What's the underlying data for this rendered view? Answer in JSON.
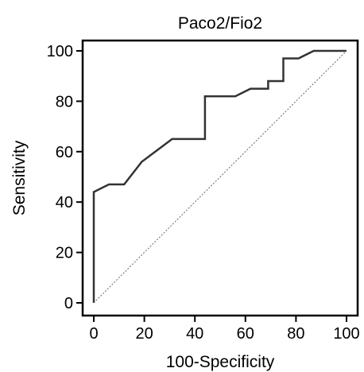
{
  "chart_data": {
    "type": "line",
    "title": "Paco2/Fio2",
    "xlabel": "100-Specificity",
    "ylabel": "Sensitivity",
    "xlim": [
      0,
      100
    ],
    "ylim": [
      0,
      100
    ],
    "xticks": [
      0,
      20,
      40,
      60,
      80,
      100
    ],
    "yticks": [
      0,
      20,
      40,
      60,
      80,
      100
    ],
    "grid": false,
    "series": [
      {
        "style": "solid",
        "color": "#333333",
        "points": [
          [
            0,
            0
          ],
          [
            0,
            44
          ],
          [
            6,
            47
          ],
          [
            12,
            47
          ],
          [
            19,
            56
          ],
          [
            31,
            65
          ],
          [
            44,
            65
          ],
          [
            44,
            82
          ],
          [
            56,
            82
          ],
          [
            62,
            85
          ],
          [
            69,
            85
          ],
          [
            69,
            88
          ],
          [
            75,
            88
          ],
          [
            75,
            97
          ],
          [
            81,
            97
          ],
          [
            87,
            100
          ],
          [
            100,
            100
          ]
        ]
      },
      {
        "style": "dotted",
        "color": "#666666",
        "points": [
          [
            0,
            0
          ],
          [
            100,
            100
          ]
        ]
      }
    ]
  }
}
